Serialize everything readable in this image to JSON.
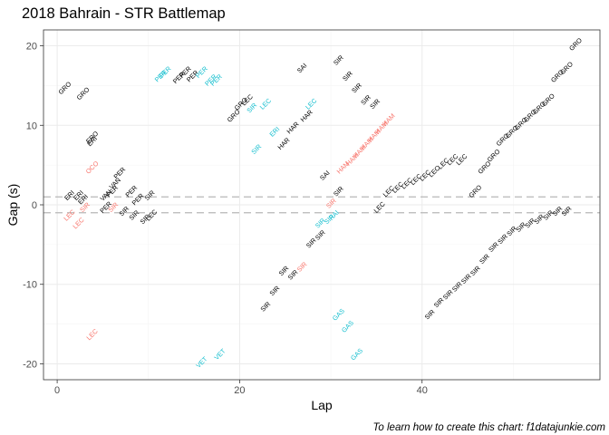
{
  "chart_data": {
    "type": "scatter",
    "title": "2018 Bahrain - STR Battlemap",
    "xlabel": "Lap",
    "ylabel": "Gap (s)",
    "caption": "To learn how to create this chart: f1datajunkie.com",
    "xlim": [
      -1.5,
      59.5
    ],
    "ylim": [
      -22,
      22
    ],
    "x_ticks": [
      0,
      20,
      40
    ],
    "y_ticks": [
      -20,
      -10,
      0,
      10,
      20
    ],
    "grid": true,
    "reference_lines": [
      1,
      -1
    ],
    "colors": {
      "default": "#000000",
      "blue": "#17bfcf",
      "red": "#f8766d",
      "refline": "#b8b8b8",
      "grid_major": "#ebebeb",
      "grid_minor": "#f4f4f4",
      "panel_border": "#333333"
    },
    "points": [
      {
        "x": 1,
        "y": 14.5,
        "label": "GRO",
        "color": "default"
      },
      {
        "x": 3,
        "y": 13.8,
        "label": "GRO",
        "color": "default"
      },
      {
        "x": 4,
        "y": 8.3,
        "label": "ERO",
        "color": "default"
      },
      {
        "x": 4,
        "y": 7.8,
        "label": "ERI",
        "color": "default"
      },
      {
        "x": 4,
        "y": 4.5,
        "label": "OCO",
        "color": "red"
      },
      {
        "x": 1.5,
        "y": 1.0,
        "label": "ERI",
        "color": "default"
      },
      {
        "x": 2.5,
        "y": 1.0,
        "label": "ERI",
        "color": "default"
      },
      {
        "x": 1.5,
        "y": -1.5,
        "label": "LEC",
        "color": "red"
      },
      {
        "x": 2.5,
        "y": -2.5,
        "label": "LEC",
        "color": "red"
      },
      {
        "x": 3,
        "y": 0.5,
        "label": "ERI",
        "color": "default"
      },
      {
        "x": 3.2,
        "y": -0.5,
        "label": "SIR",
        "color": "red"
      },
      {
        "x": 5.5,
        "y": 1.0,
        "label": "VAN",
        "color": "default"
      },
      {
        "x": 6.5,
        "y": 2.5,
        "label": "VAN",
        "color": "default"
      },
      {
        "x": 7,
        "y": 3.8,
        "label": "PER",
        "color": "default"
      },
      {
        "x": 6.2,
        "y": 1.5,
        "label": "PER",
        "color": "default"
      },
      {
        "x": 5.5,
        "y": -0.5,
        "label": "PER",
        "color": "default"
      },
      {
        "x": 6.3,
        "y": -0.5,
        "label": "SIR",
        "color": "red"
      },
      {
        "x": 7.5,
        "y": -1.0,
        "label": "SIR",
        "color": "default"
      },
      {
        "x": 8.3,
        "y": 1.5,
        "label": "PER",
        "color": "default"
      },
      {
        "x": 9,
        "y": 0.5,
        "label": "PER",
        "color": "default"
      },
      {
        "x": 10.3,
        "y": 1.0,
        "label": "SIR",
        "color": "default"
      },
      {
        "x": 8.6,
        "y": -1.5,
        "label": "SIR",
        "color": "default"
      },
      {
        "x": 9.8,
        "y": -2.0,
        "label": "SIR",
        "color": "default"
      },
      {
        "x": 10.5,
        "y": -1.5,
        "label": "LEC",
        "color": "default"
      },
      {
        "x": 11.5,
        "y": 16.0,
        "label": "PER",
        "color": "blue"
      },
      {
        "x": 12,
        "y": 16.5,
        "label": "PER",
        "color": "blue"
      },
      {
        "x": 13.5,
        "y": 15.8,
        "label": "PER",
        "color": "default"
      },
      {
        "x": 14.2,
        "y": 16.5,
        "label": "PER",
        "color": "default"
      },
      {
        "x": 15,
        "y": 16.0,
        "label": "PER",
        "color": "default"
      },
      {
        "x": 16,
        "y": 16.5,
        "label": "PER",
        "color": "blue"
      },
      {
        "x": 17,
        "y": 15.5,
        "label": "PER",
        "color": "blue"
      },
      {
        "x": 17.6,
        "y": 15.5,
        "label": "PER",
        "color": "blue"
      },
      {
        "x": 19.5,
        "y": 11.0,
        "label": "GRO",
        "color": "default"
      },
      {
        "x": 20.3,
        "y": 12.5,
        "label": "GRO",
        "color": "default"
      },
      {
        "x": 21,
        "y": 13.0,
        "label": "LEC",
        "color": "default"
      },
      {
        "x": 21.5,
        "y": 12.0,
        "label": "SIR",
        "color": "blue"
      },
      {
        "x": 23,
        "y": 12.5,
        "label": "LEC",
        "color": "blue"
      },
      {
        "x": 22,
        "y": 6.8,
        "label": "SIR",
        "color": "blue"
      },
      {
        "x": 24,
        "y": 9.0,
        "label": "ERI",
        "color": "blue"
      },
      {
        "x": 25,
        "y": 7.5,
        "label": "HAR",
        "color": "default"
      },
      {
        "x": 26,
        "y": 9.5,
        "label": "HAR",
        "color": "default"
      },
      {
        "x": 27.5,
        "y": 11.0,
        "label": "HAR",
        "color": "default"
      },
      {
        "x": 28,
        "y": 12.5,
        "label": "LEC",
        "color": "blue"
      },
      {
        "x": 27,
        "y": 17.0,
        "label": "SAI",
        "color": "default"
      },
      {
        "x": 31,
        "y": 18.0,
        "label": "SIR",
        "color": "default"
      },
      {
        "x": 32,
        "y": 16.0,
        "label": "SIR",
        "color": "default"
      },
      {
        "x": 33,
        "y": 14.5,
        "label": "SIR",
        "color": "default"
      },
      {
        "x": 34,
        "y": 13.0,
        "label": "SIR",
        "color": "default"
      },
      {
        "x": 35,
        "y": 12.5,
        "label": "SIR",
        "color": "default"
      },
      {
        "x": 29.5,
        "y": 3.5,
        "label": "SAI",
        "color": "default"
      },
      {
        "x": 31.5,
        "y": 4.5,
        "label": "HAM",
        "color": "red"
      },
      {
        "x": 32.5,
        "y": 5.5,
        "label": "HAM",
        "color": "red"
      },
      {
        "x": 33.3,
        "y": 6.5,
        "label": "HAM",
        "color": "red"
      },
      {
        "x": 34.1,
        "y": 7.5,
        "label": "HAM",
        "color": "red"
      },
      {
        "x": 34.9,
        "y": 8.5,
        "label": "HAM",
        "color": "red"
      },
      {
        "x": 35.7,
        "y": 9.5,
        "label": "HAM",
        "color": "red"
      },
      {
        "x": 36.5,
        "y": 10.5,
        "label": "HAM",
        "color": "red"
      },
      {
        "x": 35.5,
        "y": -0.5,
        "label": "LEC",
        "color": "default"
      },
      {
        "x": 36.5,
        "y": 1.5,
        "label": "LEC",
        "color": "default"
      },
      {
        "x": 37.5,
        "y": 2.0,
        "label": "LEC",
        "color": "default"
      },
      {
        "x": 38.5,
        "y": 2.5,
        "label": "LEC",
        "color": "default"
      },
      {
        "x": 39.5,
        "y": 3.0,
        "label": "LEC",
        "color": "default"
      },
      {
        "x": 40.5,
        "y": 3.5,
        "label": "LEC",
        "color": "default"
      },
      {
        "x": 41.5,
        "y": 4.0,
        "label": "LEC",
        "color": "default"
      },
      {
        "x": 42.5,
        "y": 5.0,
        "label": "LEC",
        "color": "default"
      },
      {
        "x": 43.5,
        "y": 5.5,
        "label": "LEC",
        "color": "default"
      },
      {
        "x": 44.5,
        "y": 5.5,
        "label": "LEC",
        "color": "default"
      },
      {
        "x": 46,
        "y": 1.5,
        "label": "GRO",
        "color": "default"
      },
      {
        "x": 47,
        "y": 4.5,
        "label": "GRO",
        "color": "default"
      },
      {
        "x": 48,
        "y": 6.0,
        "label": "GRO",
        "color": "default"
      },
      {
        "x": 49,
        "y": 8.0,
        "label": "GRO",
        "color": "default"
      },
      {
        "x": 50,
        "y": 9.0,
        "label": "GRO",
        "color": "default"
      },
      {
        "x": 51,
        "y": 10.0,
        "label": "GRO",
        "color": "default"
      },
      {
        "x": 52,
        "y": 11.0,
        "label": "GRO",
        "color": "default"
      },
      {
        "x": 53,
        "y": 12.0,
        "label": "GRO",
        "color": "default"
      },
      {
        "x": 54,
        "y": 13.0,
        "label": "GRO",
        "color": "default"
      },
      {
        "x": 55,
        "y": 16.0,
        "label": "GRO",
        "color": "default"
      },
      {
        "x": 56,
        "y": 17.0,
        "label": "GRO",
        "color": "default"
      },
      {
        "x": 57,
        "y": 20.0,
        "label": "GRO",
        "color": "default"
      },
      {
        "x": 31,
        "y": 1.5,
        "label": "SIR",
        "color": "default"
      },
      {
        "x": 30,
        "y": -2.0,
        "label": "SIR",
        "color": "blue"
      },
      {
        "x": 30.2,
        "y": 0.0,
        "label": "SIR",
        "color": "red"
      },
      {
        "x": 29,
        "y": -2.5,
        "label": "SIR",
        "color": "blue"
      },
      {
        "x": 30.5,
        "y": -1.5,
        "label": "RAI",
        "color": "blue"
      },
      {
        "x": 28,
        "y": -5.0,
        "label": "SIR",
        "color": "default"
      },
      {
        "x": 29,
        "y": -4.0,
        "label": "SIR",
        "color": "default"
      },
      {
        "x": 27,
        "y": -8.0,
        "label": "SIR",
        "color": "red"
      },
      {
        "x": 26,
        "y": -9.0,
        "label": "SIR",
        "color": "default"
      },
      {
        "x": 25,
        "y": -8.5,
        "label": "SIR",
        "color": "default"
      },
      {
        "x": 24,
        "y": -11.0,
        "label": "SIR",
        "color": "default"
      },
      {
        "x": 23,
        "y": -13.0,
        "label": "SIR",
        "color": "default"
      },
      {
        "x": 31,
        "y": -14.0,
        "label": "GAS",
        "color": "blue"
      },
      {
        "x": 32,
        "y": -15.5,
        "label": "GAS",
        "color": "blue"
      },
      {
        "x": 33,
        "y": -19.0,
        "label": "GAS",
        "color": "blue"
      },
      {
        "x": 16,
        "y": -20.0,
        "label": "VET",
        "color": "blue"
      },
      {
        "x": 18,
        "y": -19.0,
        "label": "VET",
        "color": "blue"
      },
      {
        "x": 4,
        "y": -16.5,
        "label": "LEC",
        "color": "red"
      },
      {
        "x": 41,
        "y": -14.0,
        "label": "SIR",
        "color": "default"
      },
      {
        "x": 42,
        "y": -12.5,
        "label": "SIR",
        "color": "default"
      },
      {
        "x": 43,
        "y": -11.5,
        "label": "SIR",
        "color": "default"
      },
      {
        "x": 44,
        "y": -10.5,
        "label": "SIR",
        "color": "default"
      },
      {
        "x": 45,
        "y": -9.5,
        "label": "SIR",
        "color": "default"
      },
      {
        "x": 46,
        "y": -8.5,
        "label": "SIR",
        "color": "default"
      },
      {
        "x": 47,
        "y": -7.0,
        "label": "SIR",
        "color": "default"
      },
      {
        "x": 48,
        "y": -5.5,
        "label": "SIR",
        "color": "default"
      },
      {
        "x": 49,
        "y": -4.5,
        "label": "SIR",
        "color": "default"
      },
      {
        "x": 50,
        "y": -3.5,
        "label": "SIR",
        "color": "default"
      },
      {
        "x": 51,
        "y": -3.0,
        "label": "SIR",
        "color": "default"
      },
      {
        "x": 52,
        "y": -2.5,
        "label": "SIR",
        "color": "default"
      },
      {
        "x": 53,
        "y": -2.0,
        "label": "SIR",
        "color": "default"
      },
      {
        "x": 54,
        "y": -1.5,
        "label": "SIR",
        "color": "default"
      },
      {
        "x": 55,
        "y": -1.0,
        "label": "SIR",
        "color": "default"
      },
      {
        "x": 56,
        "y": -1.0,
        "label": "SIR",
        "color": "default"
      }
    ]
  }
}
